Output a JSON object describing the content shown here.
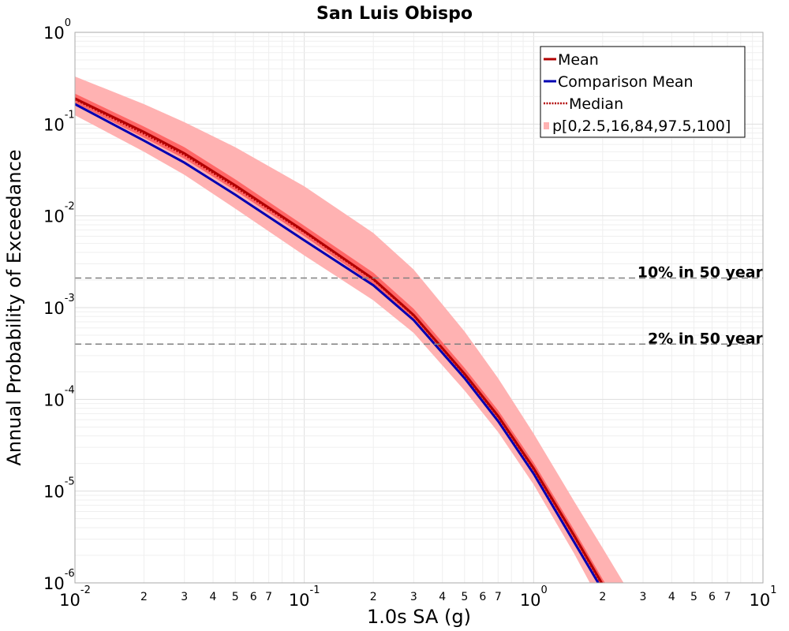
{
  "chart_data": {
    "type": "line",
    "title": "San Luis Obispo",
    "xlabel": "1.0s SA (g)",
    "ylabel": "Annual Probability of Exceedance",
    "x_scale": "log",
    "y_scale": "log",
    "xlim": [
      0.01,
      10
    ],
    "ylim": [
      1e-06,
      1
    ],
    "grid": true,
    "legend_position": "top-right",
    "x_major_ticks": [
      {
        "value": 0.01,
        "base": "10",
        "exp": "-2"
      },
      {
        "value": 0.1,
        "base": "10",
        "exp": "-1"
      },
      {
        "value": 1,
        "base": "10",
        "exp": "0"
      },
      {
        "value": 10,
        "base": "10",
        "exp": "1"
      }
    ],
    "x_minor_labels": [
      "2",
      "3",
      "4",
      "5",
      "6",
      "7"
    ],
    "y_major_ticks": [
      {
        "value": 1,
        "base": "10",
        "exp": "0"
      },
      {
        "value": 0.1,
        "base": "10",
        "exp": "-1"
      },
      {
        "value": 0.01,
        "base": "10",
        "exp": "-2"
      },
      {
        "value": 0.001,
        "base": "10",
        "exp": "-3"
      },
      {
        "value": 0.0001,
        "base": "10",
        "exp": "-4"
      },
      {
        "value": 1e-05,
        "base": "10",
        "exp": "-5"
      },
      {
        "value": 1e-06,
        "base": "10",
        "exp": "-6"
      }
    ],
    "reference_lines": [
      {
        "label": "10% in 50 year",
        "y": 0.0021
      },
      {
        "label": "2% in 50 year",
        "y": 0.0004
      }
    ],
    "x": [
      0.01,
      0.02,
      0.03,
      0.05,
      0.1,
      0.2,
      0.3,
      0.5,
      0.7,
      1.0,
      1.5,
      2.0,
      2.5
    ],
    "series": [
      {
        "name": "Mean",
        "color": "#b20000",
        "style": "solid",
        "values": [
          0.19,
          0.082,
          0.048,
          0.0215,
          0.0068,
          0.00205,
          0.00083,
          0.00019,
          6.6e-05,
          1.78e-05,
          3.3e-06,
          9.6e-07,
          4e-07
        ]
      },
      {
        "name": "Comparison Mean",
        "color": "#0000b2",
        "style": "solid",
        "values": [
          0.165,
          0.066,
          0.038,
          0.017,
          0.0054,
          0.00175,
          0.00073,
          0.00017,
          5.8e-05,
          1.55e-05,
          2.8e-06,
          8.3e-07,
          3.5e-07
        ]
      },
      {
        "name": "Median",
        "color": "#b20000",
        "style": "dotted",
        "values": [
          0.185,
          0.078,
          0.046,
          0.0205,
          0.0066,
          0.002,
          0.00081,
          0.000185,
          6.4e-05,
          1.72e-05,
          3.2e-06,
          9.2e-07,
          3.8e-07
        ]
      }
    ],
    "bands": [
      {
        "name": "p[0,2.5,16,84,97.5,100]",
        "color": "#ffb2b2",
        "kind": "outer",
        "lower": [
          0.125,
          0.05,
          0.028,
          0.012,
          0.0037,
          0.0012,
          0.00053,
          0.000125,
          4.4e-05,
          1.18e-05,
          2.1e-06,
          5.5e-07,
          2e-07
        ],
        "upper": [
          0.33,
          0.165,
          0.105,
          0.056,
          0.021,
          0.0065,
          0.0026,
          0.00055,
          0.00017,
          4.25e-05,
          7.8e-06,
          2.4e-06,
          9.5e-07
        ]
      },
      {
        "name": "p[0,2.5,16,84,97.5,100]",
        "color": "#ff6666",
        "kind": "inner",
        "lower": [
          0.17,
          0.071,
          0.042,
          0.0188,
          0.006,
          0.0018,
          0.00074,
          0.00017,
          5.8e-05,
          1.55e-05,
          2.9e-06,
          8.2e-07,
          3.3e-07
        ],
        "upper": [
          0.215,
          0.094,
          0.056,
          0.025,
          0.0078,
          0.0024,
          0.00097,
          0.00022,
          7.6e-05,
          2.05e-05,
          3.8e-06,
          1.1e-06,
          4.6e-07
        ]
      }
    ],
    "legend": [
      {
        "label": "Mean",
        "color": "#b20000",
        "style": "solid"
      },
      {
        "label": "Comparison Mean",
        "color": "#0000b2",
        "style": "solid"
      },
      {
        "label": "Median",
        "color": "#b20000",
        "style": "dotted"
      },
      {
        "label": "p[0,2.5,16,84,97.5,100]",
        "color": "#ffb2b2",
        "style": "patch"
      }
    ]
  }
}
